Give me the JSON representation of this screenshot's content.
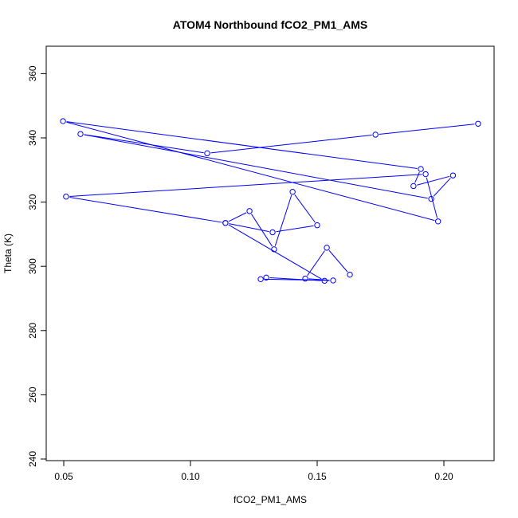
{
  "chart_data": {
    "type": "line",
    "title": "ATOM4 Northbound fCO2_PM1_AMS",
    "xlabel": "fCO2_PM1_AMS",
    "ylabel": "Theta (K)",
    "xlim": [
      0.043,
      0.218
    ],
    "ylim": [
      240,
      368
    ],
    "xticks": [
      0.05,
      0.1,
      0.15,
      0.2
    ],
    "xtick_labels": [
      "0.05",
      "0.10",
      "0.15",
      "0.20"
    ],
    "yticks": [
      240,
      260,
      280,
      300,
      320,
      340,
      360
    ],
    "ytick_labels": [
      "240",
      "260",
      "280",
      "300",
      "320",
      "340",
      "360"
    ],
    "grid": false,
    "color": "#0000ff",
    "x": [
      0.2135,
      0.173,
      0.1066,
      0.0566,
      0.195,
      0.2036,
      0.188,
      0.1909,
      0.0497,
      0.1977,
      0.1928,
      0.0509,
      0.1138,
      0.1324,
      0.15,
      0.1403,
      0.133,
      0.1233,
      0.1138,
      0.1529,
      0.1299,
      0.1277,
      0.1563,
      0.1453,
      0.1538,
      0.1629
    ],
    "y": [
      344.4,
      341.0,
      335.2,
      341.2,
      321.0,
      328.3,
      325.0,
      330.3,
      345.2,
      314.0,
      328.7,
      321.7,
      313.5,
      310.6,
      312.8,
      323.2,
      305.3,
      317.2,
      313.5,
      295.5,
      296.5,
      296.0,
      295.6,
      296.2,
      305.8,
      297.4
    ]
  }
}
